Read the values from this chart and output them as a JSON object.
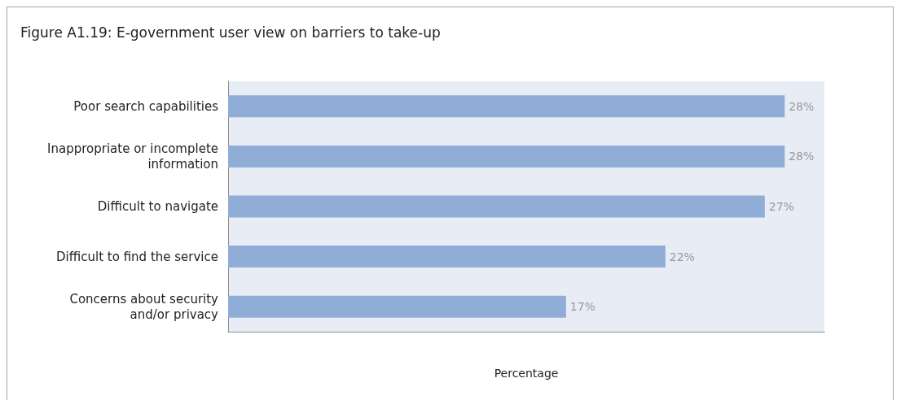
{
  "chart_data": {
    "type": "bar",
    "orientation": "horizontal",
    "title": "Figure A1.19: E-government user view on barriers to take-up",
    "xlabel": "Percentage",
    "categories": [
      "Poor search capabilities",
      "Inappropriate or incomplete\ninformation",
      "Difficult to navigate",
      "Difficult to find the service",
      "Concerns about security\nand/or privacy"
    ],
    "values": [
      28,
      28,
      27,
      22,
      17
    ],
    "value_labels": [
      "28%",
      "28%",
      "27%",
      "22%",
      "17%"
    ],
    "color": "#8fadd6",
    "grid": false,
    "tick_labels": "y"
  }
}
